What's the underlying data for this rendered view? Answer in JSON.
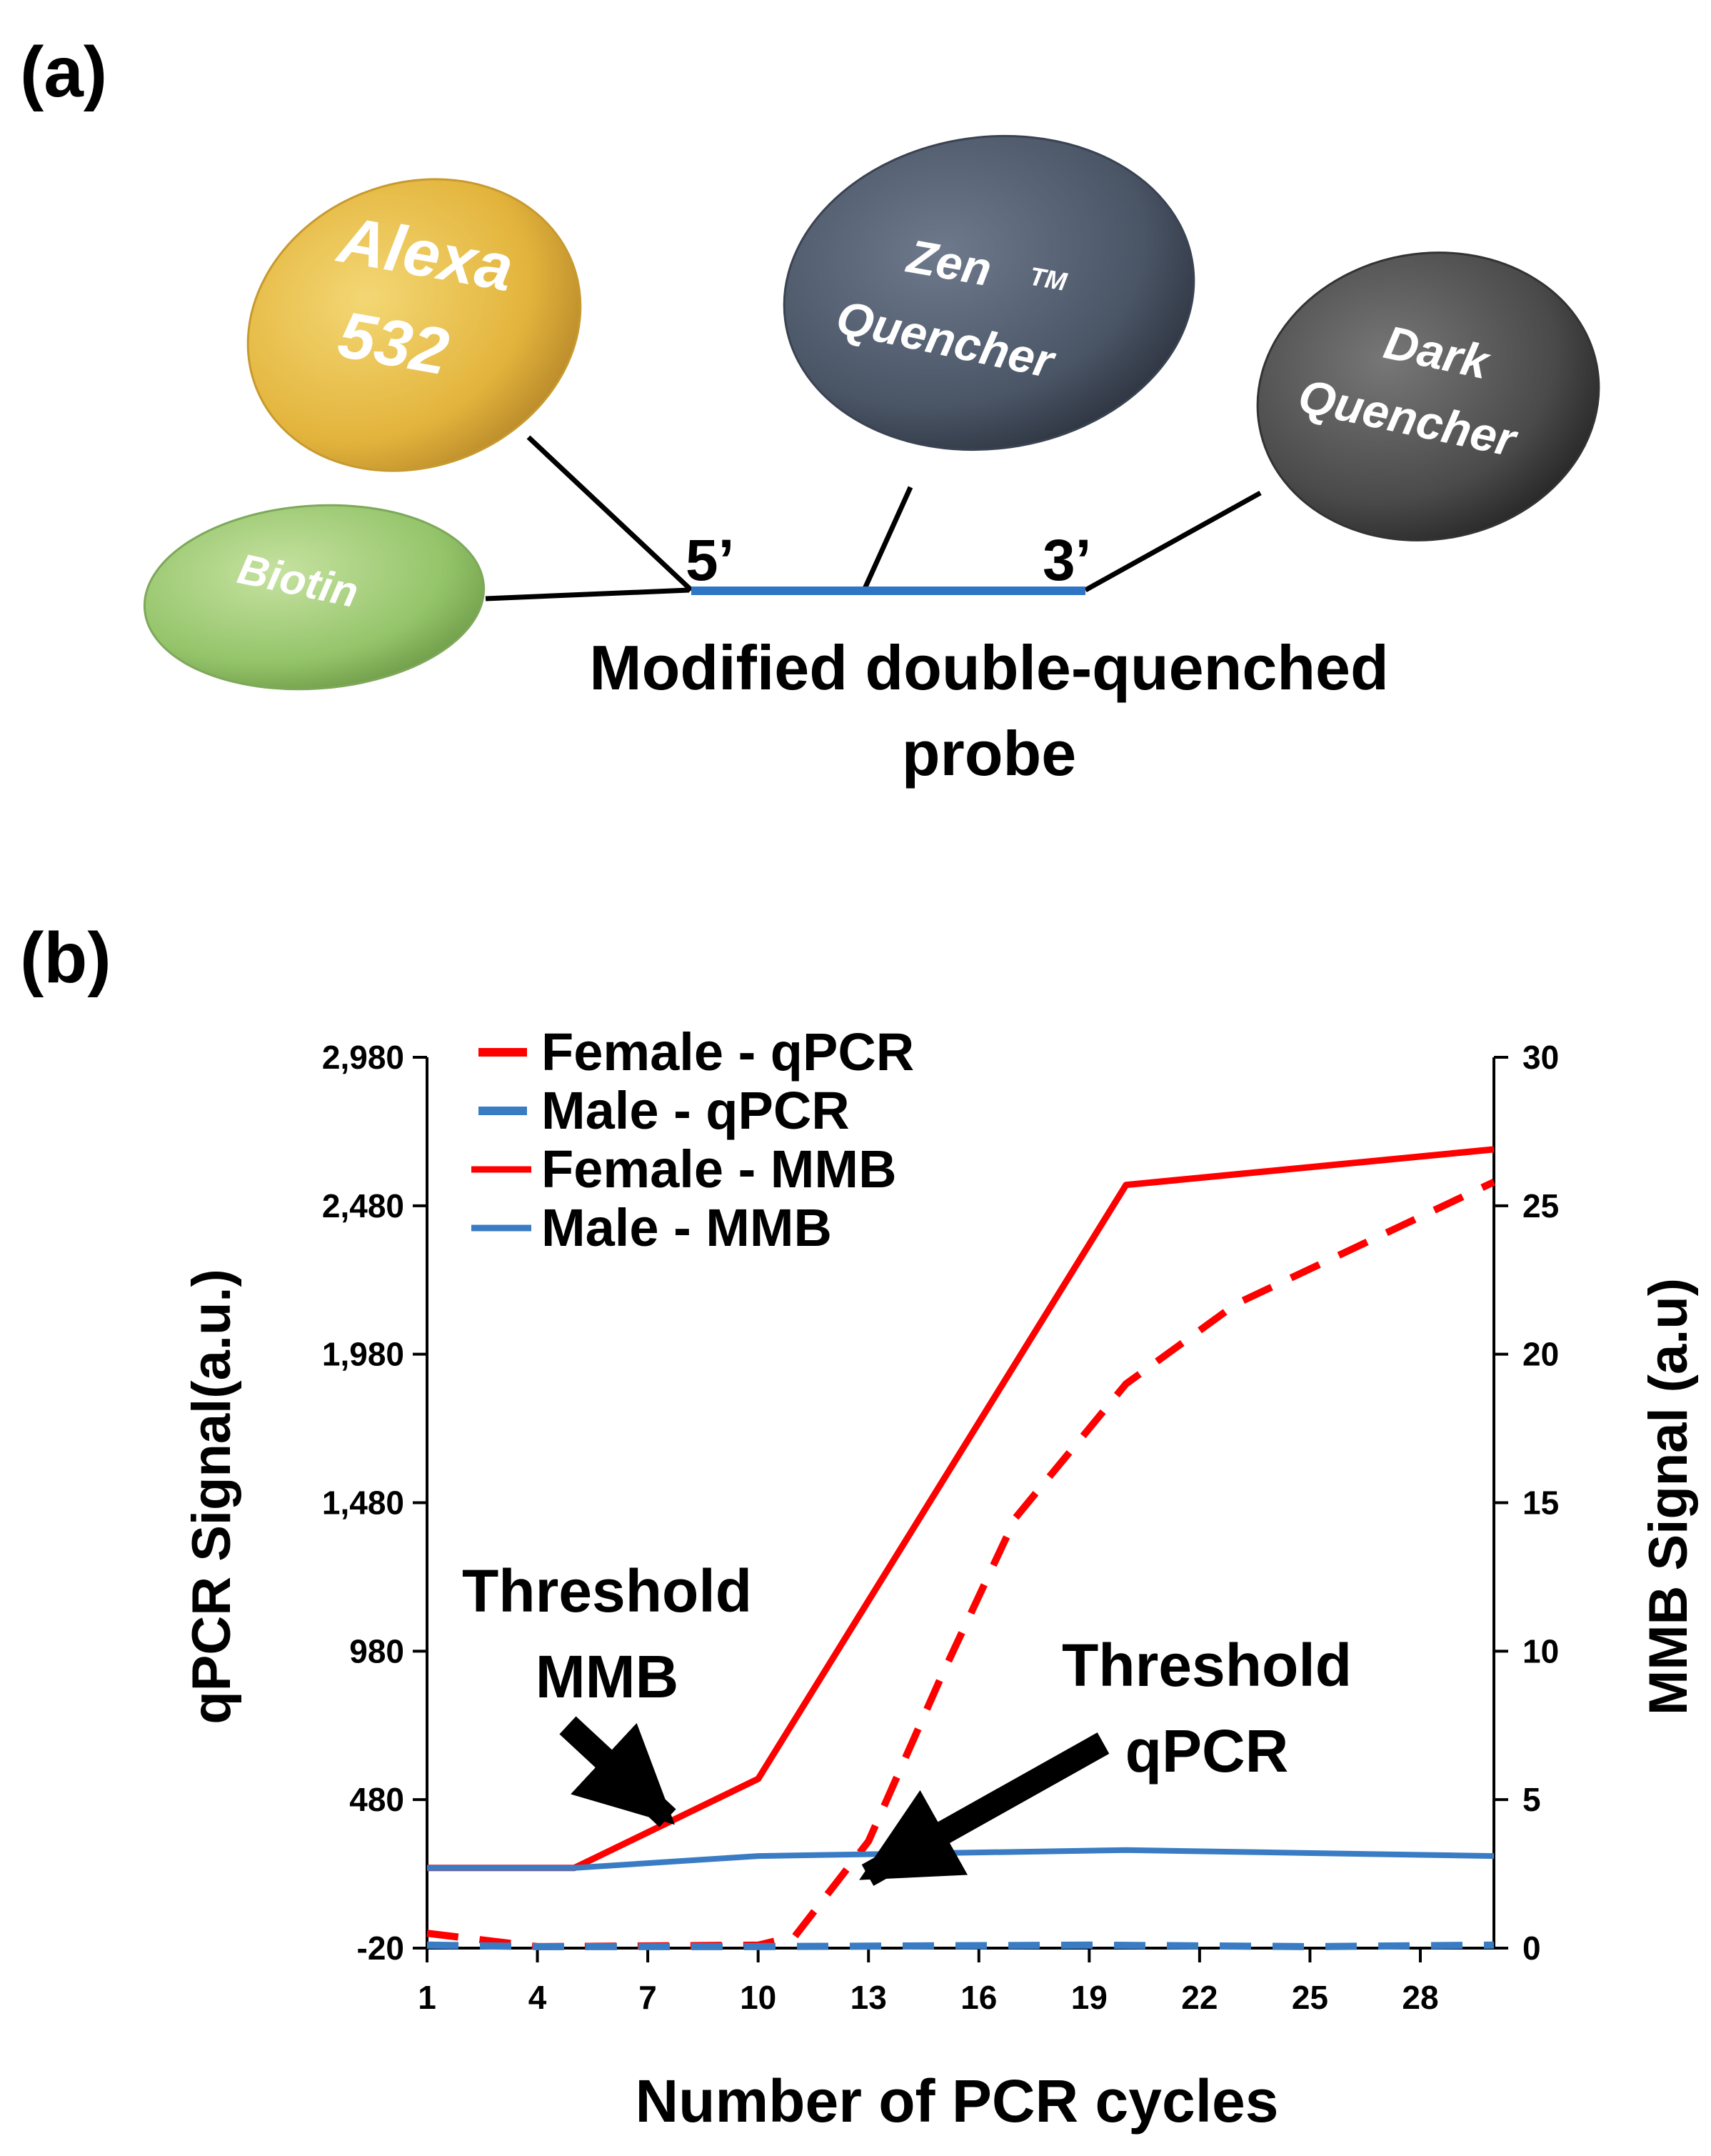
{
  "panel_a": {
    "label": "(a)",
    "alexa_line1": "Alexa",
    "alexa_line2": "532",
    "zen_line1": "Zen",
    "zen_tm": "TM",
    "zen_line2": "Quencher",
    "dark_line1": "Dark",
    "dark_line2": "Quencher",
    "biotin": "Biotin",
    "five_prime": "5’",
    "three_prime": "3’",
    "caption_line1": "Modified double-quenched",
    "caption_line2": "probe",
    "colors": {
      "alexa": "#e3b43c",
      "zen": "#4a5566",
      "dark": "#4a4a4a",
      "biotin": "#94c46a",
      "probe_strand": "#2e75c6"
    }
  },
  "panel_b": {
    "label": "(b)",
    "threshold_mmb_line1": "Threshold",
    "threshold_mmb_line2": "MMB",
    "threshold_qpcr_line1": "Threshold",
    "threshold_qpcr_line2": "qPCR"
  },
  "chart_data": {
    "type": "line",
    "xlabel": "Number of  PCR cycles",
    "ylabel_left": "qPCR Signal(a.u.)",
    "ylabel_right": "MMB Signal (a.u)",
    "xlim": [
      1,
      30
    ],
    "ylim_left": [
      -20,
      2980
    ],
    "ylim_right": [
      0,
      30
    ],
    "x_ticks": [
      "1",
      "4",
      "7",
      "10",
      "13",
      "16",
      "19",
      "22",
      "25",
      "28"
    ],
    "y_left_ticks": [
      "-20",
      "480",
      "980",
      "1,480",
      "1,980",
      "2,480",
      "2,980"
    ],
    "y_right_ticks": [
      "0",
      "5",
      "10",
      "15",
      "20",
      "25",
      "30"
    ],
    "legend_position": "top-left",
    "series": [
      {
        "name": "Female - qPCR",
        "axis": "left",
        "style": "dashed",
        "color": "#ff0000",
        "x": [
          1,
          4,
          10,
          11,
          13,
          15,
          17,
          20,
          23,
          30
        ],
        "y": [
          30,
          -15,
          -10,
          20,
          340,
          900,
          1430,
          1880,
          2150,
          2560
        ]
      },
      {
        "name": "Male - qPCR",
        "axis": "left",
        "style": "dashed",
        "color": "#3a7cc4",
        "x": [
          1,
          4,
          10,
          19,
          25,
          30
        ],
        "y": [
          -10,
          -15,
          -15,
          -10,
          -15,
          -10
        ]
      },
      {
        "name": "Female - MMB",
        "axis": "right",
        "style": "solid",
        "color": "#ff0000",
        "x": [
          1,
          5,
          10,
          20,
          30
        ],
        "y": [
          2.7,
          2.7,
          5.7,
          25.7,
          26.9
        ]
      },
      {
        "name": "Male - MMB",
        "axis": "right",
        "style": "solid",
        "color": "#3a7cc4",
        "x": [
          1,
          5,
          10,
          20,
          30
        ],
        "y": [
          2.7,
          2.7,
          3.1,
          3.3,
          3.1
        ]
      }
    ]
  }
}
